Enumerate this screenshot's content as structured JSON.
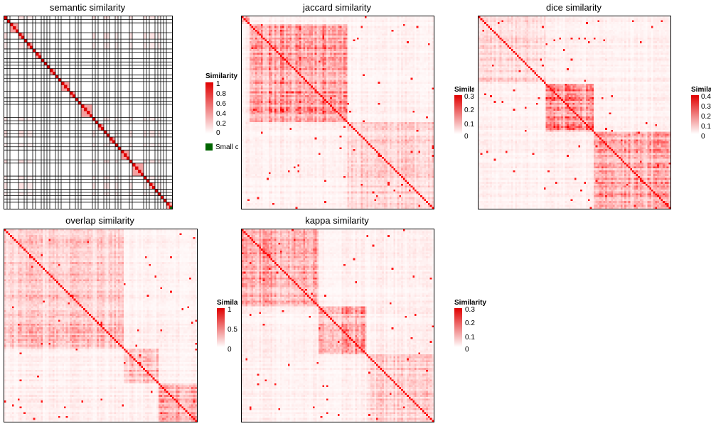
{
  "chart_data": [
    {
      "type": "heatmap",
      "title": "semantic similarity",
      "n": 60,
      "clusters": [
        1,
        1,
        3,
        2,
        1,
        2,
        1,
        2,
        1,
        1,
        1,
        2,
        1,
        1,
        3,
        2,
        1,
        1,
        4,
        1,
        1,
        2,
        1,
        1,
        2,
        1,
        1,
        3,
        1,
        4,
        1,
        1,
        2,
        1,
        1,
        1,
        1,
        2
      ],
      "background": 0.08,
      "block_value": 0.0,
      "legend": {
        "title": "Similarity",
        "ticks": [
          "1",
          "0.8",
          "0.6",
          "0.4",
          "0.2",
          "0"
        ],
        "range": [
          0,
          1
        ],
        "extra_label": "Small cluster",
        "extra_color": "#006400"
      }
    },
    {
      "type": "heatmap",
      "title": "jaccard similarity",
      "n": 100,
      "legend": {
        "title": "Similarity",
        "ticks": [
          "0.3",
          "0.2",
          "0.1",
          "0"
        ],
        "range": [
          0,
          0.3
        ]
      }
    },
    {
      "type": "heatmap",
      "title": "dice similarity",
      "n": 100,
      "legend": {
        "title": "Similarity",
        "ticks": [
          "0.4",
          "0.3",
          "0.2",
          "0.1",
          "0"
        ],
        "range": [
          0,
          0.4
        ]
      }
    },
    {
      "type": "heatmap",
      "title": "overlap similarity",
      "n": 100,
      "legend": {
        "title": "Similarity",
        "ticks": [
          "1",
          "0.5",
          "0"
        ],
        "range": [
          0,
          1
        ]
      }
    },
    {
      "type": "heatmap",
      "title": "kappa similarity",
      "n": 100,
      "legend": {
        "title": "Similarity",
        "ticks": [
          "0.3",
          "0.2",
          "0.1",
          "0"
        ],
        "range": [
          0,
          0.3
        ]
      }
    }
  ],
  "colors": {
    "low": "#ffffff",
    "high": "#ff0000",
    "diagonal": "#e00000",
    "small_cluster": "#006400"
  }
}
